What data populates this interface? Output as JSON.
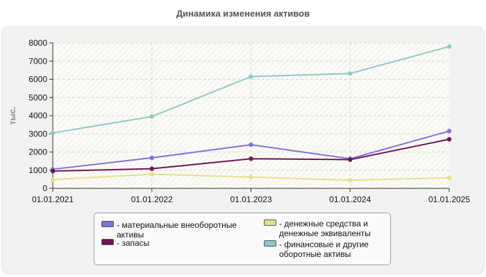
{
  "chart_data": {
    "type": "line",
    "title": "Динамика изменения активов",
    "ylabel": "тыс.",
    "xlabel": "",
    "categories": [
      "01.01.2021",
      "01.01.2022",
      "01.01.2023",
      "01.01.2024",
      "01.01.2025"
    ],
    "ylim": [
      0,
      8000
    ],
    "yticks": [
      0,
      1000,
      2000,
      3000,
      4000,
      5000,
      6000,
      7000,
      8000
    ],
    "grid": true,
    "legend_position": "bottom",
    "series": [
      {
        "name": "- материальные внеоборотные активы",
        "color": "#7b72e0",
        "values": [
          1050,
          1680,
          2400,
          1630,
          3150
        ]
      },
      {
        "name": "- запасы",
        "color": "#6d1452",
        "values": [
          950,
          1080,
          1630,
          1580,
          2700
        ]
      },
      {
        "name": "- денежные средства и денежные эквиваленты",
        "color": "#e3e08a",
        "values": [
          480,
          780,
          620,
          450,
          580
        ]
      },
      {
        "name": "- финансовые и другие оборотные активы",
        "color": "#8ec9c7",
        "values": [
          3050,
          3950,
          6150,
          6320,
          7800
        ]
      }
    ]
  }
}
